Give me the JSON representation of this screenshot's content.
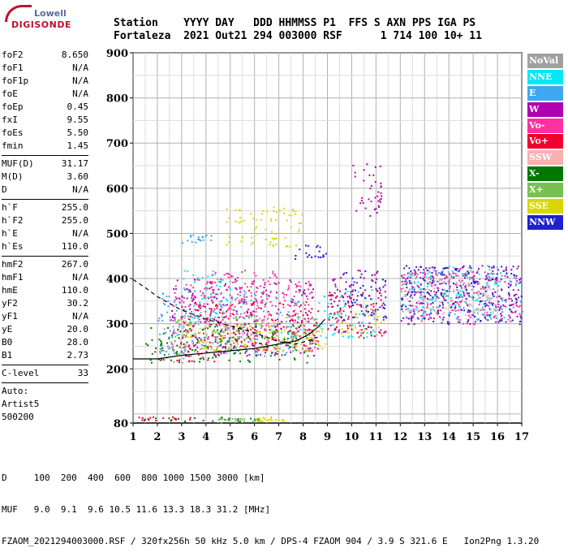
{
  "logo": {
    "line1": "Lowell",
    "line2": "DIGISONDE"
  },
  "header": {
    "row1": "Station    YYYY DAY   DDD HHMMSS P1  FFS S AXN PPS IGA PS",
    "row2": "Fortaleza  2021 Out21 294 003000 RSF      1 714 100 10+ 11"
  },
  "params": {
    "group1": [
      {
        "k": "foF2",
        "v": "8.650"
      },
      {
        "k": "foF1",
        "v": "N/A"
      },
      {
        "k": "foF1p",
        "v": "N/A"
      },
      {
        "k": "foE",
        "v": "N/A"
      },
      {
        "k": "foEp",
        "v": "0.45"
      },
      {
        "k": "fxI",
        "v": "9.55"
      },
      {
        "k": "foEs",
        "v": "5.50"
      },
      {
        "k": "fmin",
        "v": "1.45"
      }
    ],
    "group2": [
      {
        "k": "MUF(D)",
        "v": "31.17"
      },
      {
        "k": "M(D)",
        "v": "3.60"
      },
      {
        "k": "D",
        "v": "N/A"
      }
    ],
    "group3": [
      {
        "k": "h`F",
        "v": "255.0"
      },
      {
        "k": "h`F2",
        "v": "255.0"
      },
      {
        "k": "h`E",
        "v": "N/A"
      },
      {
        "k": "h`Es",
        "v": "110.0"
      }
    ],
    "group4": [
      {
        "k": "hmF2",
        "v": "267.0"
      },
      {
        "k": "hmF1",
        "v": "N/A"
      },
      {
        "k": "hmE",
        "v": "110.0"
      },
      {
        "k": "yF2",
        "v": "30.2"
      },
      {
        "k": "yF1",
        "v": "N/A"
      },
      {
        "k": "yE",
        "v": "20.0"
      },
      {
        "k": "B0",
        "v": "28.0"
      },
      {
        "k": "B1",
        "v": "2.73"
      }
    ],
    "group5": [
      {
        "k": "C-level",
        "v": "33"
      }
    ],
    "auto": [
      "Auto:",
      "Artist5",
      "500200"
    ]
  },
  "legend": [
    {
      "label": "NoVal",
      "color": "#a0a0a0"
    },
    {
      "label": "NNE",
      "color": "#00e8f8"
    },
    {
      "label": "E",
      "color": "#40a8f0"
    },
    {
      "label": "W",
      "color": "#b000b0"
    },
    {
      "label": "Vo-",
      "color": "#ff30a0"
    },
    {
      "label": "Vo+",
      "color": "#f00030"
    },
    {
      "label": "SSW",
      "color": "#f8b0b0"
    },
    {
      "label": "X-",
      "color": "#007800"
    },
    {
      "label": "X+",
      "color": "#78c050"
    },
    {
      "label": "SSE",
      "color": "#d8d800"
    },
    {
      "label": "NNW",
      "color": "#2020d0"
    }
  ],
  "footer": {
    "line1": "D     100  200  400  600  800 1000 1500 3000 [km]",
    "line2": "MUF   9.0  9.1  9.6 10.5 11.6 13.3 18.3 31.2 [MHz]",
    "line3": "FZAOM_2021294003000.RSF / 320fx256h 50 kHz 5.0 km / DPS-4 FZAOM 904 / 3.9 S 321.6 E   Ion2Png 1.3.20"
  },
  "chart_data": {
    "type": "scatter",
    "title": "",
    "xlabel": "",
    "ylabel": "",
    "xlim": [
      1,
      17
    ],
    "ylim": [
      80,
      900
    ],
    "x_ticks": [
      1,
      2,
      3,
      4,
      5,
      6,
      7,
      8,
      9,
      10,
      11,
      12,
      13,
      14,
      15,
      16,
      17
    ],
    "y_ticks": [
      80,
      200,
      300,
      400,
      500,
      600,
      700,
      800,
      900
    ],
    "grid": true,
    "legend_position": "right",
    "series": [
      {
        "name": "NoVal",
        "color": "#a0a0a0",
        "clusters": [
          [
            2.0,
            3.5,
            215,
            300
          ],
          [
            12,
            16,
            330,
            420
          ]
        ]
      },
      {
        "name": "NNE",
        "color": "#00e8f8",
        "clusters": [
          [
            3.0,
            5.0,
            300,
            420
          ],
          [
            8.5,
            11,
            270,
            380
          ],
          [
            12,
            16,
            320,
            430
          ]
        ]
      },
      {
        "name": "E",
        "color": "#40a8f0",
        "clusters": [
          [
            2.0,
            8.0,
            230,
            380
          ],
          [
            12,
            17,
            310,
            420
          ],
          [
            3.0,
            4.2,
            480,
            500
          ]
        ]
      },
      {
        "name": "W",
        "color": "#b000b0",
        "clusters": [
          [
            2.5,
            8.5,
            230,
            400
          ],
          [
            9,
            11.4,
            270,
            420
          ],
          [
            12,
            17,
            300,
            430
          ],
          [
            10,
            11.2,
            540,
            670
          ]
        ]
      },
      {
        "name": "Vo-",
        "color": "#ff30a0",
        "clusters": [
          [
            2.5,
            8.5,
            240,
            400
          ],
          [
            12,
            17,
            300,
            420
          ],
          [
            4,
            7,
            330,
            420
          ]
        ]
      },
      {
        "name": "Vo+",
        "color": "#f00030",
        "clusters": [
          [
            1.6,
            4.5,
            215,
            240
          ],
          [
            3,
            8.6,
            240,
            350
          ],
          [
            9,
            11.4,
            270,
            380
          ],
          [
            1.2,
            3.5,
            87,
            95
          ]
        ]
      },
      {
        "name": "SSW",
        "color": "#f8b0b0",
        "clusters": [
          [
            3,
            8.6,
            240,
            320
          ],
          [
            12,
            16,
            320,
            400
          ]
        ]
      },
      {
        "name": "X-",
        "color": "#007800",
        "clusters": [
          [
            1.5,
            8.5,
            215,
            300
          ],
          [
            1.2,
            6.5,
            85,
            95
          ]
        ]
      },
      {
        "name": "X+",
        "color": "#78c050",
        "clusters": [
          [
            2.5,
            8.5,
            240,
            320
          ],
          [
            4.5,
            6.2,
            82,
            92
          ]
        ]
      },
      {
        "name": "SSE",
        "color": "#d8d800",
        "clusters": [
          [
            3.0,
            9.0,
            240,
            300
          ],
          [
            9.5,
            11.4,
            270,
            340
          ],
          [
            4.8,
            8,
            470,
            560
          ],
          [
            6,
            7.2,
            85,
            95
          ]
        ]
      },
      {
        "name": "NNW",
        "color": "#2020d0",
        "clusters": [
          [
            7.6,
            9.0,
            445,
            475
          ],
          [
            9.5,
            11.4,
            310,
            420
          ],
          [
            12,
            17,
            300,
            430
          ]
        ]
      }
    ],
    "traces": [
      {
        "name": "profile",
        "style": "dashed",
        "x": [
          1.0,
          1.5,
          2.0,
          3.0,
          4.0,
          5.0,
          6.0,
          7.0,
          7.7,
          8.2,
          8.6
        ],
        "y": [
          398,
          380,
          360,
          330,
          310,
          295,
          280,
          260,
          255,
          262,
          270
        ]
      },
      {
        "name": "trace",
        "style": "solid",
        "x": [
          1.0,
          2.0,
          3.0,
          4.0,
          5.0,
          6.0,
          7.0,
          7.7,
          8.2,
          8.6,
          8.9
        ],
        "y": [
          222,
          222,
          230,
          235,
          240,
          245,
          255,
          262,
          275,
          292,
          310
        ]
      }
    ]
  }
}
